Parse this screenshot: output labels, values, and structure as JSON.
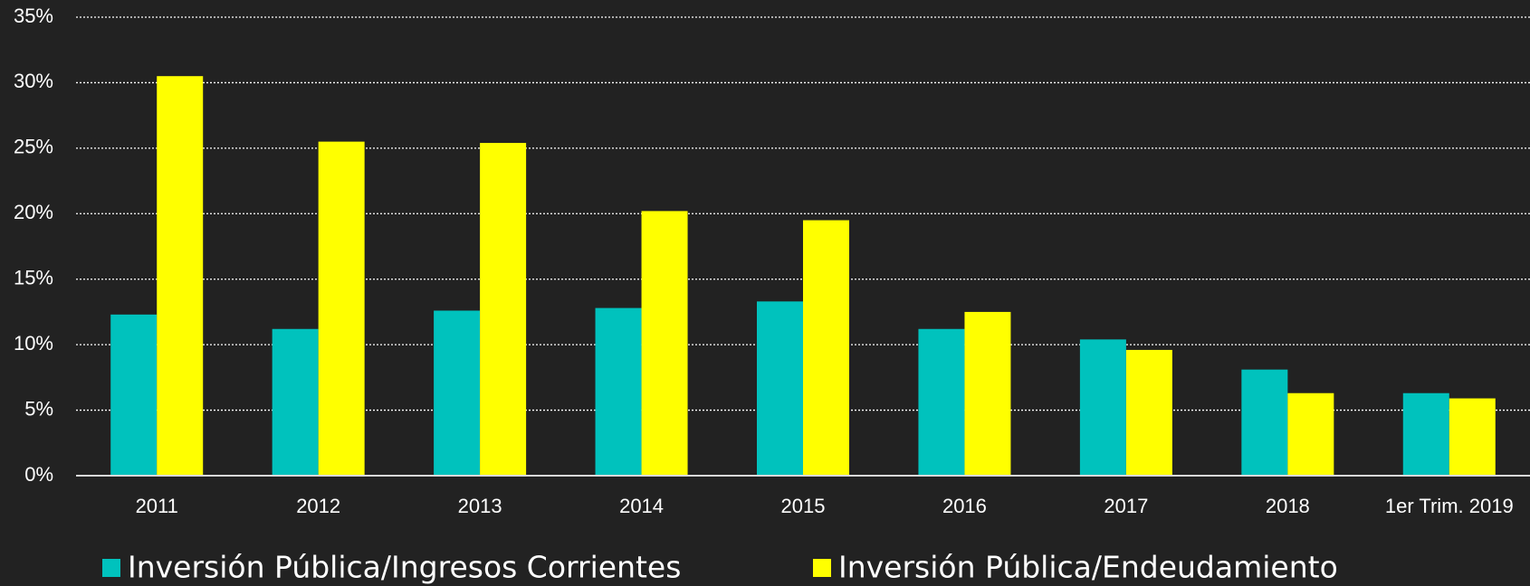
{
  "chart_data": {
    "type": "bar",
    "categories": [
      "2011",
      "2012",
      "2013",
      "2014",
      "2015",
      "2016",
      "2017",
      "2018",
      "1er Trim. 2019"
    ],
    "series": [
      {
        "name": "Inversión Pública/Ingresos Corrientes",
        "color": "#00c2bd",
        "values": [
          12.3,
          11.2,
          12.6,
          12.8,
          13.3,
          11.2,
          10.4,
          8.1,
          6.3
        ]
      },
      {
        "name": "Inversión Pública/Endeudamiento",
        "color": "#ffff00",
        "values": [
          30.5,
          25.5,
          25.4,
          20.2,
          19.5,
          12.5,
          9.6,
          6.3,
          5.9
        ]
      }
    ],
    "ylim": [
      0,
      35
    ],
    "yticks": [
      {
        "value": 0,
        "label": "0%"
      },
      {
        "value": 5,
        "label": "5%"
      },
      {
        "value": 10,
        "label": "10%"
      },
      {
        "value": 15,
        "label": "15%"
      },
      {
        "value": 20,
        "label": "20%"
      },
      {
        "value": 25,
        "label": "25%"
      },
      {
        "value": 30,
        "label": "30%"
      },
      {
        "value": 35,
        "label": "35%"
      }
    ],
    "grid": true,
    "legend": "bottom"
  }
}
